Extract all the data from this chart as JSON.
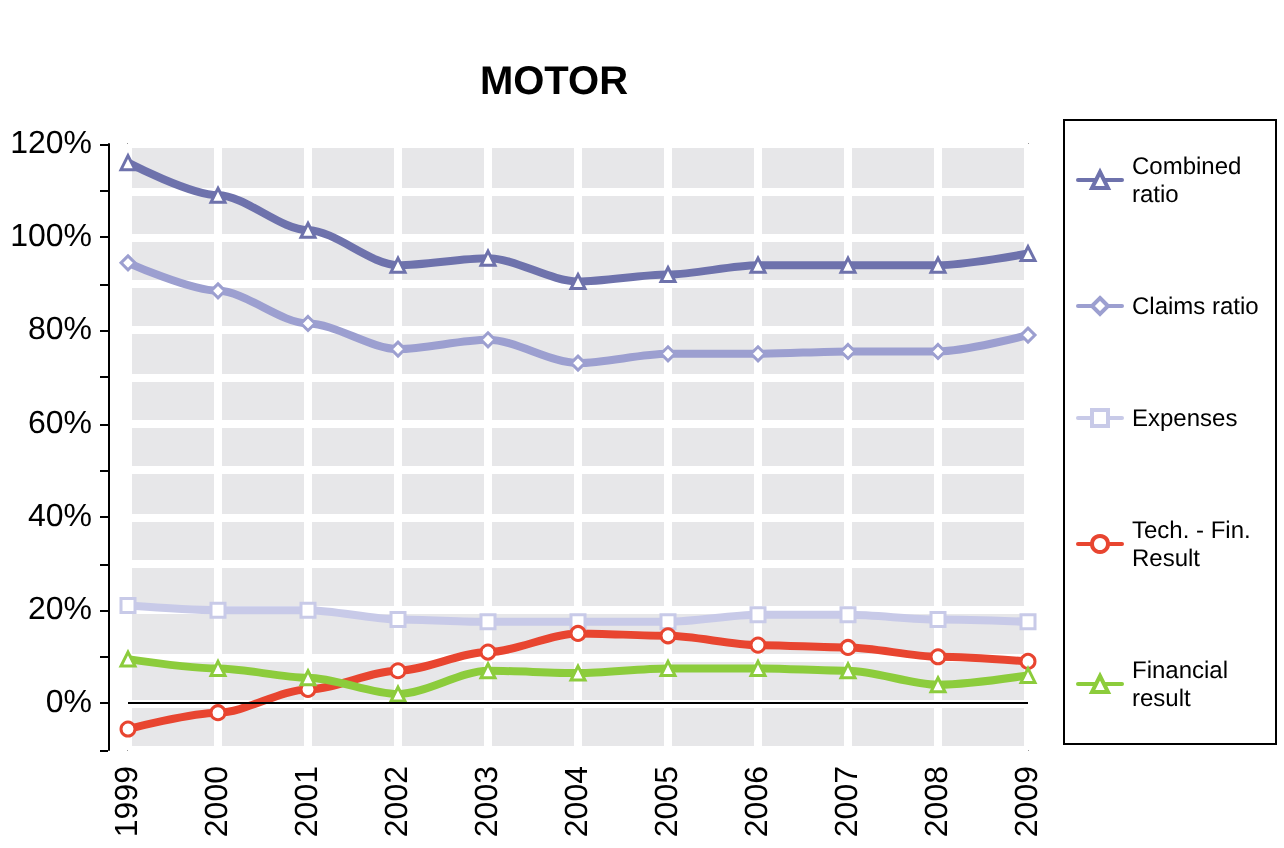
{
  "chart_data": {
    "type": "line",
    "title": "MOTOR",
    "categories": [
      "1999",
      "2000",
      "2001",
      "2002",
      "2003",
      "2004",
      "2005",
      "2006",
      "2007",
      "2008",
      "2009"
    ],
    "series": [
      {
        "name": "Combined ratio",
        "color": "#6e72ac",
        "marker": "triangle",
        "values": [
          116,
          109,
          101.5,
          94,
          95.5,
          90.5,
          92,
          94,
          94,
          94,
          96.5
        ]
      },
      {
        "name": "Claims ratio",
        "color": "#9c9fd0",
        "marker": "diamond",
        "values": [
          94.5,
          88.5,
          81.5,
          76,
          78,
          73,
          75,
          75,
          75.5,
          75.5,
          79
        ]
      },
      {
        "name": "Expenses",
        "color": "#c8cae8",
        "marker": "square",
        "values": [
          21,
          20,
          20,
          18,
          17.5,
          17.5,
          17.5,
          19,
          19,
          18,
          17.5
        ]
      },
      {
        "name": "Tech. - Fin. Result",
        "color": "#e84530",
        "marker": "circle",
        "values": [
          -5.5,
          -2,
          3,
          7,
          11,
          15,
          14.5,
          12.5,
          12,
          10,
          9
        ]
      },
      {
        "name": "Financial result",
        "color": "#8ccc3c",
        "marker": "triangle",
        "values": [
          9.5,
          7.5,
          5.5,
          2,
          7,
          6.5,
          7.5,
          7.5,
          7,
          4,
          6
        ]
      }
    ],
    "ylim": [
      -10,
      120
    ],
    "yticks": [
      {
        "value": -10,
        "label": null
      },
      {
        "value": 0,
        "label": "0%"
      },
      {
        "value": 10,
        "label": null
      },
      {
        "value": 20,
        "label": "20%"
      },
      {
        "value": 30,
        "label": null
      },
      {
        "value": 40,
        "label": "40%"
      },
      {
        "value": 50,
        "label": null
      },
      {
        "value": 60,
        "label": "60%"
      },
      {
        "value": 70,
        "label": null
      },
      {
        "value": 80,
        "label": "80%"
      },
      {
        "value": 90,
        "label": null
      },
      {
        "value": 100,
        "label": "100%"
      },
      {
        "value": 110,
        "label": null
      },
      {
        "value": 120,
        "label": "120%"
      }
    ],
    "ref_lines": [
      {
        "axis": "y",
        "value": 0,
        "label": null,
        "color": "#000000"
      }
    ],
    "grid": true,
    "legend": "right",
    "line_style": "solid"
  }
}
